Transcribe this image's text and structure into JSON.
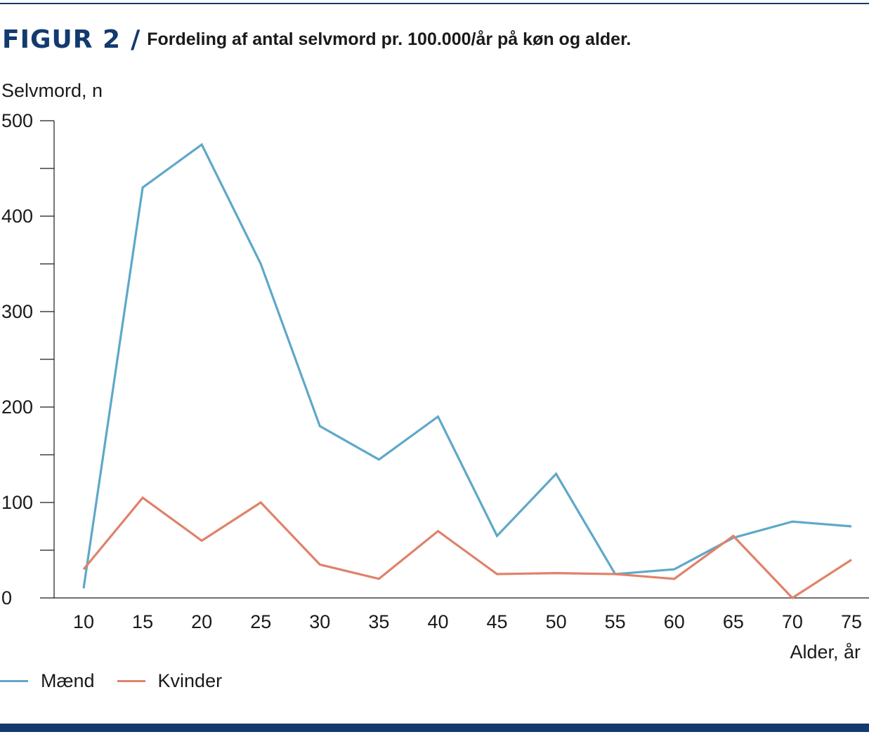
{
  "figure": {
    "label": "FIGUR 2",
    "separator": "/",
    "title": "Fordeling af antal selvmord pr. 100.000/år på køn og alder."
  },
  "colors": {
    "accent": "#123a6e",
    "maend": "#5ea8c8",
    "kvinder": "#e0826a"
  },
  "legend": {
    "maend": "Mænd",
    "kvinder": "Kvinder"
  },
  "chart_data": {
    "type": "line",
    "title": "Fordeling af antal selvmord pr. 100.000/år på køn og alder.",
    "xlabel": "Alder, år",
    "ylabel": "Selvmord, n",
    "ylim": [
      0,
      500
    ],
    "yticks": [
      0,
      100,
      200,
      300,
      400,
      500
    ],
    "x": [
      10,
      15,
      20,
      25,
      30,
      35,
      40,
      45,
      50,
      55,
      60,
      65,
      70,
      75
    ],
    "series": [
      {
        "name": "Mænd",
        "color": "#5ea8c8",
        "values": [
          10,
          430,
          475,
          350,
          180,
          145,
          190,
          65,
          130,
          25,
          30,
          63,
          80,
          75
        ]
      },
      {
        "name": "Kvinder",
        "color": "#e0826a",
        "values": [
          30,
          105,
          60,
          100,
          35,
          20,
          70,
          25,
          26,
          25,
          20,
          65,
          0,
          40
        ]
      }
    ],
    "grid": false,
    "legend_position": "bottom-left"
  }
}
